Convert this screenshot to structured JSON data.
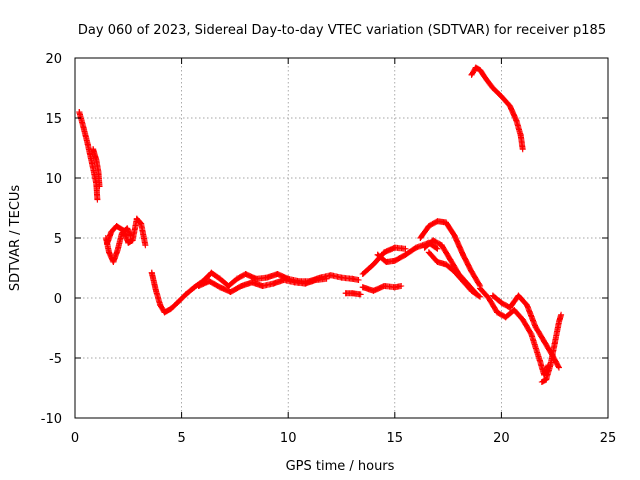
{
  "chart_data": {
    "type": "scatter",
    "title": "Day 060 of 2023, Sidereal Day-to-day VTEC variation (SDTVAR) for receiver p185",
    "xlabel": "GPS time / hours",
    "ylabel": "SDTVAR / TECUs",
    "xlim": [
      0,
      25
    ],
    "ylim": [
      -10,
      20
    ],
    "xticks": [
      0,
      5,
      10,
      15,
      20,
      25
    ],
    "yticks": [
      -10,
      -5,
      0,
      5,
      10,
      15,
      20
    ],
    "grid": true,
    "marker": "+",
    "series": [
      {
        "name": "SDTVAR",
        "color": "#ff0000",
        "segments": [
          [
            [
              0.2,
              15.5
            ],
            [
              0.4,
              14.2
            ],
            [
              0.6,
              12.8
            ],
            [
              0.8,
              11.2
            ],
            [
              1.0,
              9.5
            ],
            [
              1.05,
              8.2
            ]
          ],
          [
            [
              0.85,
              12.4
            ],
            [
              1.0,
              11.5
            ],
            [
              1.1,
              10.5
            ],
            [
              1.15,
              9.3
            ]
          ],
          [
            [
              1.45,
              5.0
            ],
            [
              1.6,
              3.8
            ],
            [
              1.8,
              3.0
            ],
            [
              2.0,
              4.0
            ],
            [
              2.2,
              5.4
            ],
            [
              2.45,
              5.8
            ],
            [
              2.6,
              5.2
            ]
          ],
          [
            [
              1.5,
              4.5
            ],
            [
              1.7,
              5.5
            ],
            [
              1.95,
              6.0
            ],
            [
              2.3,
              5.6
            ],
            [
              2.5,
              4.6
            ],
            [
              2.7,
              4.8
            ],
            [
              2.9,
              6.6
            ],
            [
              3.1,
              6.2
            ],
            [
              3.3,
              4.4
            ]
          ],
          [
            [
              3.6,
              2.1
            ],
            [
              3.8,
              0.6
            ],
            [
              4.0,
              -0.6
            ],
            [
              4.2,
              -1.2
            ],
            [
              4.5,
              -0.9
            ],
            [
              4.8,
              -0.4
            ],
            [
              5.2,
              0.3
            ]
          ],
          [
            [
              5.2,
              0.3
            ],
            [
              5.6,
              0.9
            ],
            [
              6.0,
              1.4
            ],
            [
              6.4,
              2.1
            ],
            [
              6.8,
              1.6
            ],
            [
              7.2,
              1.0
            ],
            [
              7.6,
              1.6
            ],
            [
              8.0,
              2.0
            ],
            [
              8.5,
              1.6
            ],
            [
              9.0,
              1.7
            ],
            [
              9.5,
              2.0
            ],
            [
              10.0,
              1.6
            ],
            [
              10.5,
              1.4
            ],
            [
              11.0,
              1.4
            ],
            [
              11.5,
              1.7
            ],
            [
              12.0,
              1.9
            ],
            [
              12.5,
              1.7
            ],
            [
              13.0,
              1.6
            ],
            [
              13.3,
              1.5
            ]
          ],
          [
            [
              5.8,
              1.0
            ],
            [
              6.3,
              1.4
            ],
            [
              6.8,
              0.9
            ],
            [
              7.3,
              0.5
            ],
            [
              7.8,
              1.0
            ],
            [
              8.3,
              1.3
            ],
            [
              8.8,
              1.0
            ],
            [
              9.3,
              1.2
            ],
            [
              9.8,
              1.5
            ],
            [
              10.3,
              1.3
            ],
            [
              10.8,
              1.2
            ],
            [
              11.3,
              1.5
            ],
            [
              11.8,
              1.6
            ]
          ],
          [
            [
              12.7,
              0.4
            ],
            [
              13.0,
              0.4
            ],
            [
              13.4,
              0.3
            ]
          ],
          [
            [
              13.5,
              0.9
            ],
            [
              14.0,
              0.6
            ],
            [
              14.5,
              1.0
            ],
            [
              15.0,
              0.9
            ],
            [
              15.3,
              1.0
            ]
          ],
          [
            [
              13.5,
              2.0
            ],
            [
              14.0,
              2.8
            ],
            [
              14.5,
              3.8
            ],
            [
              15.0,
              4.2
            ],
            [
              15.5,
              4.1
            ]
          ],
          [
            [
              14.2,
              3.6
            ],
            [
              14.6,
              3.0
            ],
            [
              15.0,
              3.1
            ],
            [
              15.5,
              3.6
            ],
            [
              16.0,
              4.2
            ],
            [
              16.6,
              4.6
            ],
            [
              17.0,
              4.1
            ]
          ],
          [
            [
              16.2,
              5.0
            ],
            [
              16.6,
              6.0
            ],
            [
              17.0,
              6.4
            ],
            [
              17.4,
              6.3
            ],
            [
              17.8,
              5.2
            ],
            [
              18.2,
              3.6
            ],
            [
              18.6,
              2.2
            ],
            [
              19.0,
              1.0
            ]
          ],
          [
            [
              16.4,
              4.2
            ],
            [
              16.8,
              4.8
            ],
            [
              17.2,
              4.4
            ],
            [
              17.6,
              3.2
            ],
            [
              18.0,
              2.0
            ],
            [
              18.4,
              1.2
            ],
            [
              18.8,
              0.4
            ]
          ],
          [
            [
              16.6,
              3.8
            ],
            [
              17.0,
              3.0
            ],
            [
              17.4,
              2.8
            ],
            [
              17.8,
              2.2
            ],
            [
              18.2,
              1.4
            ],
            [
              18.6,
              0.6
            ],
            [
              19.0,
              0.1
            ]
          ],
          [
            [
              19.0,
              0.8
            ],
            [
              19.4,
              0.0
            ],
            [
              19.8,
              -1.2
            ],
            [
              20.2,
              -1.6
            ],
            [
              20.6,
              -1.0
            ],
            [
              21.0,
              -1.8
            ],
            [
              21.4,
              -3.0
            ],
            [
              21.8,
              -5.2
            ],
            [
              22.0,
              -6.4
            ],
            [
              22.2,
              -5.6
            ]
          ],
          [
            [
              19.6,
              0.2
            ],
            [
              20.0,
              -0.4
            ],
            [
              20.4,
              -0.8
            ],
            [
              20.8,
              0.2
            ],
            [
              21.2,
              -0.6
            ],
            [
              21.6,
              -2.4
            ],
            [
              22.0,
              -3.6
            ],
            [
              22.4,
              -4.8
            ],
            [
              22.7,
              -5.8
            ]
          ],
          [
            [
              21.9,
              -7.0
            ],
            [
              22.1,
              -6.8
            ],
            [
              22.3,
              -5.6
            ],
            [
              22.5,
              -3.8
            ],
            [
              22.7,
              -2.0
            ],
            [
              22.8,
              -1.4
            ]
          ],
          [
            [
              18.6,
              18.6
            ],
            [
              18.8,
              19.2
            ],
            [
              19.0,
              19.0
            ],
            [
              19.3,
              18.2
            ],
            [
              19.6,
              17.5
            ],
            [
              20.0,
              16.8
            ],
            [
              20.4,
              16.0
            ],
            [
              20.7,
              14.8
            ],
            [
              20.9,
              13.6
            ],
            [
              21.0,
              12.4
            ]
          ]
        ]
      }
    ]
  }
}
